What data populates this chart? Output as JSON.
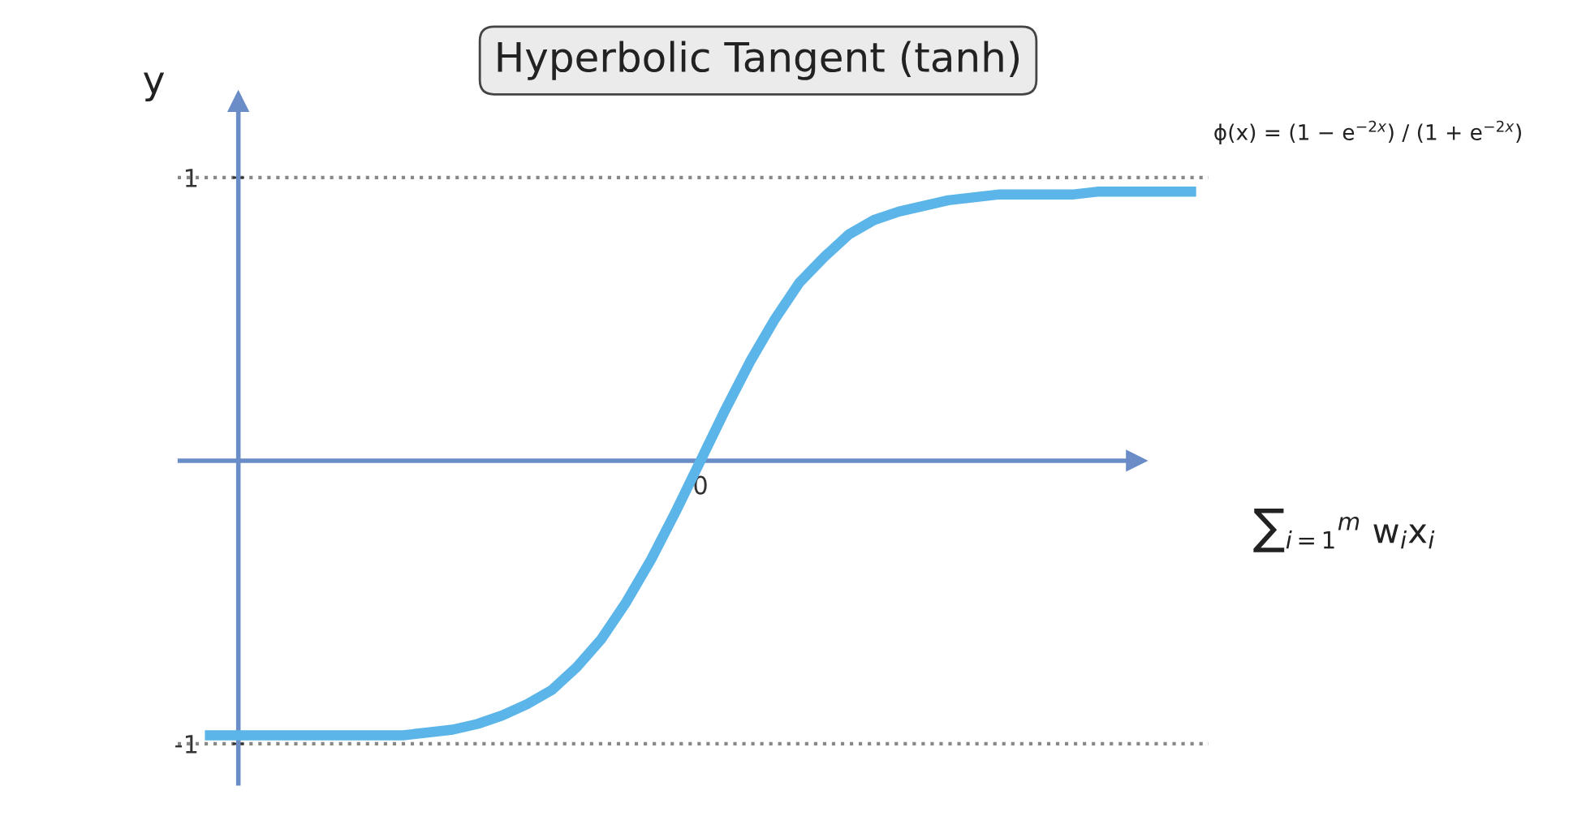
{
  "chart_data": {
    "type": "line",
    "title": "Hyperbolic Tangent (tanh)",
    "ylabel": "y",
    "xlabel": "∑$_{i=1}$$^{m}$ w$_{i}$x$_{i}$",
    "annotations": [
      "ϕ(x) = (1 − e$^{−2x}$) / (1 + e$^{−2x}$)"
    ],
    "categories": [
      null,
      null,
      null,
      null,
      null,
      null,
      null,
      null,
      null,
      null,
      null,
      null,
      null,
      null,
      null,
      null,
      null,
      null,
      null,
      null,
      "0",
      null,
      null,
      null,
      null,
      null,
      null,
      null,
      null,
      null,
      null,
      null,
      null,
      null,
      null,
      null,
      null,
      null,
      null,
      null,
      null
    ],
    "series": [
      {
        "color": "#5bb5e8",
        "values": [
          -0.97,
          -0.97,
          -0.97,
          -0.97,
          -0.97,
          -0.97,
          -0.97,
          -0.97,
          -0.97,
          -0.96,
          -0.95,
          -0.93,
          -0.9,
          -0.86,
          -0.81,
          -0.73,
          -0.63,
          -0.5,
          -0.35,
          -0.18,
          0,
          0.18,
          0.35,
          0.5,
          0.63,
          0.72,
          0.8,
          0.85,
          0.88,
          0.9,
          0.92,
          0.93,
          0.94,
          0.94,
          0.94,
          0.94,
          0.95,
          0.95,
          0.95,
          0.95,
          0.95
        ]
      }
    ],
    "ylim": [
      -1.14,
      1.27
    ],
    "yticks": [
      1,
      -1
    ],
    "ref_lines": [
      {
        "axis": "y",
        "value": 0,
        "color": "#6a8cc7",
        "line_style": "solid"
      },
      {
        "axis": "y",
        "value": 1,
        "color": "#888888",
        "line_style": "dotted"
      },
      {
        "axis": "y",
        "value": -1,
        "color": "#888888",
        "line_style": "dotted"
      }
    ],
    "grid": false,
    "legend": false,
    "marker": "none",
    "line_style": "solid"
  }
}
